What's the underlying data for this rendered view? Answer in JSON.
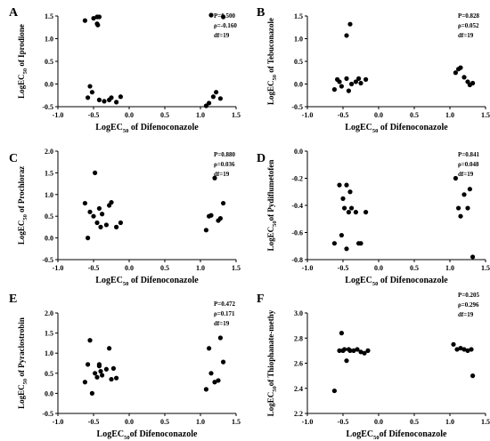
{
  "chart_data": [
    {
      "type": "scatter",
      "panel_label": "A",
      "xlabel_main": "LogEC",
      "xlabel_sub": "50",
      "xlabel_rest": " of Difenoconazole",
      "ylabel_main": "LogEC",
      "ylabel_sub": "50",
      "ylabel_rest": " of Iprodione",
      "xlim": [
        -1.0,
        1.5
      ],
      "ylim": [
        -0.5,
        1.5
      ],
      "xticks": [
        "-1.0",
        "-0.5",
        "0.0",
        "0.5",
        "1.0",
        "1.5"
      ],
      "yticks": [
        "-0.5",
        "0.0",
        "0.5",
        "1.0",
        "1.5"
      ],
      "yticks_values": [
        -0.5,
        0.0,
        0.5,
        1.0,
        1.5
      ],
      "stats": [
        "P=0.500",
        "ρ=-0.160",
        "df=19"
      ],
      "points": [
        [
          -0.62,
          1.4
        ],
        [
          -0.5,
          1.45
        ],
        [
          -0.45,
          1.48
        ],
        [
          -0.42,
          1.48
        ],
        [
          -0.45,
          1.33
        ],
        [
          -0.44,
          1.3
        ],
        [
          -0.58,
          -0.3
        ],
        [
          -0.55,
          -0.05
        ],
        [
          -0.52,
          -0.18
        ],
        [
          -0.42,
          -0.35
        ],
        [
          -0.35,
          -0.38
        ],
        [
          -0.28,
          -0.35
        ],
        [
          -0.25,
          -0.3
        ],
        [
          -0.18,
          -0.4
        ],
        [
          -0.12,
          -0.28
        ],
        [
          1.08,
          -0.48
        ],
        [
          1.12,
          -0.42
        ],
        [
          1.18,
          -0.28
        ],
        [
          1.22,
          -0.18
        ],
        [
          1.28,
          -0.32
        ],
        [
          1.15,
          1.52
        ],
        [
          1.32,
          1.48
        ]
      ]
    },
    {
      "type": "scatter",
      "panel_label": "B",
      "xlabel_main": "LogEC",
      "xlabel_sub": "50",
      "xlabel_rest": " of Difenoconazole",
      "ylabel_main": "LogEC",
      "ylabel_sub": "50",
      "ylabel_rest": " of Tebuconazole",
      "xlim": [
        -1.0,
        1.5
      ],
      "ylim": [
        -0.5,
        1.5
      ],
      "xticks": [
        "-1.0",
        "-0.5",
        "0.0",
        "0.5",
        "1.0",
        "1.5"
      ],
      "yticks": [
        "-0.5",
        "0.0",
        "0.5",
        "1.0",
        "1.5"
      ],
      "yticks_values": [
        -0.5,
        0.0,
        0.5,
        1.0,
        1.5
      ],
      "stats": [
        "P=0.828",
        "ρ=0.052",
        "df=19"
      ],
      "points": [
        [
          -0.45,
          1.07
        ],
        [
          -0.4,
          1.32
        ],
        [
          -0.62,
          -0.12
        ],
        [
          -0.58,
          0.1
        ],
        [
          -0.55,
          0.05
        ],
        [
          -0.52,
          -0.05
        ],
        [
          -0.45,
          0.12
        ],
        [
          -0.42,
          -0.15
        ],
        [
          -0.38,
          0.0
        ],
        [
          -0.32,
          0.05
        ],
        [
          -0.28,
          0.12
        ],
        [
          -0.25,
          0.02
        ],
        [
          -0.18,
          0.1
        ],
        [
          1.08,
          0.25
        ],
        [
          1.12,
          0.33
        ],
        [
          1.15,
          0.36
        ],
        [
          1.2,
          0.15
        ],
        [
          1.25,
          0.05
        ],
        [
          1.28,
          -0.02
        ],
        [
          1.32,
          0.02
        ]
      ]
    },
    {
      "type": "scatter",
      "panel_label": "C",
      "xlabel_main": "LogEC",
      "xlabel_sub": "50",
      "xlabel_rest": " of Difenoconazole",
      "ylabel_main": "LogEC",
      "ylabel_sub": "50",
      "ylabel_rest": " of Prochloraz",
      "xlim": [
        -1.0,
        1.5
      ],
      "ylim": [
        -0.5,
        2.0
      ],
      "xticks": [
        "-1.0",
        "-0.5",
        "0.0",
        "0.5",
        "1.0",
        "1.5"
      ],
      "yticks": [
        "-0.5",
        "0.0",
        "0.5",
        "1.0",
        "1.5",
        "2.0"
      ],
      "yticks_values": [
        -0.5,
        0.0,
        0.5,
        1.0,
        1.5,
        2.0
      ],
      "stats": [
        "P=0.880",
        "ρ=0.036",
        "df=19"
      ],
      "points": [
        [
          -0.48,
          1.5
        ],
        [
          -0.62,
          0.8
        ],
        [
          -0.58,
          0.0
        ],
        [
          -0.55,
          0.6
        ],
        [
          -0.5,
          0.5
        ],
        [
          -0.45,
          0.35
        ],
        [
          -0.42,
          0.68
        ],
        [
          -0.4,
          0.25
        ],
        [
          -0.38,
          0.55
        ],
        [
          -0.32,
          0.3
        ],
        [
          -0.28,
          0.75
        ],
        [
          -0.25,
          0.82
        ],
        [
          -0.18,
          0.25
        ],
        [
          -0.12,
          0.35
        ],
        [
          1.08,
          0.18
        ],
        [
          1.12,
          0.5
        ],
        [
          1.15,
          0.52
        ],
        [
          1.2,
          1.38
        ],
        [
          1.25,
          0.4
        ],
        [
          1.28,
          0.45
        ],
        [
          1.32,
          0.8
        ]
      ]
    },
    {
      "type": "scatter",
      "panel_label": "D",
      "xlabel_main": "LogEC",
      "xlabel_sub": "50",
      "xlabel_rest": " of Difenoconazole",
      "ylabel_main": "LogEC",
      "ylabel_sub": "50",
      "ylabel_rest": "of Pydiflumetofen",
      "xlim": [
        -1.0,
        1.5
      ],
      "ylim": [
        -0.8,
        0.0
      ],
      "xticks": [
        "-1.0",
        "-0.5",
        "0.0",
        "0.5",
        "1.0",
        "1.5"
      ],
      "yticks": [
        "-0.8",
        "-0.6",
        "-0.4",
        "-0.2",
        "0.0"
      ],
      "yticks_values": [
        -0.8,
        -0.6,
        -0.4,
        -0.2,
        0.0
      ],
      "stats": [
        "P=0.841",
        "ρ=0.048",
        "df=19"
      ],
      "points": [
        [
          -0.62,
          -0.68
        ],
        [
          -0.55,
          -0.25
        ],
        [
          -0.52,
          -0.62
        ],
        [
          -0.5,
          -0.35
        ],
        [
          -0.48,
          -0.42
        ],
        [
          -0.45,
          -0.25
        ],
        [
          -0.42,
          -0.45
        ],
        [
          -0.4,
          -0.3
        ],
        [
          -0.38,
          -0.42
        ],
        [
          -0.32,
          -0.45
        ],
        [
          -0.28,
          -0.68
        ],
        [
          -0.25,
          -0.68
        ],
        [
          -0.18,
          -0.45
        ],
        [
          -0.45,
          -0.72
        ],
        [
          1.08,
          -0.2
        ],
        [
          1.12,
          -0.42
        ],
        [
          1.15,
          -0.48
        ],
        [
          1.2,
          -0.32
        ],
        [
          1.25,
          -0.42
        ],
        [
          1.28,
          -0.28
        ],
        [
          1.32,
          -0.78
        ]
      ]
    },
    {
      "type": "scatter",
      "panel_label": "E",
      "xlabel_main": "LogEC",
      "xlabel_sub": "50",
      "xlabel_rest": "of Difenoconazole",
      "ylabel_main": "LogEC",
      "ylabel_sub": "50",
      "ylabel_rest": " of Pyraclostrobin",
      "xlim": [
        -1.0,
        1.5
      ],
      "ylim": [
        -0.5,
        2.0
      ],
      "xticks": [
        "-1.0",
        "-0.5",
        "0.0",
        "0.5",
        "1.0",
        "1.5"
      ],
      "yticks": [
        "-0.5",
        "0.0",
        "0.5",
        "1.0",
        "1.5",
        "2.0"
      ],
      "yticks_values": [
        -0.5,
        0.0,
        0.5,
        1.0,
        1.5,
        2.0
      ],
      "stats": [
        "P=0.472",
        "ρ=0.171",
        "df=19"
      ],
      "points": [
        [
          -0.55,
          1.32
        ],
        [
          -0.62,
          0.28
        ],
        [
          -0.58,
          0.72
        ],
        [
          -0.52,
          0.0
        ],
        [
          -0.48,
          0.5
        ],
        [
          -0.45,
          0.4
        ],
        [
          -0.42,
          0.68
        ],
        [
          -0.4,
          0.55
        ],
        [
          -0.38,
          0.45
        ],
        [
          -0.32,
          0.6
        ],
        [
          -0.28,
          1.12
        ],
        [
          -0.25,
          0.35
        ],
        [
          -0.22,
          0.62
        ],
        [
          -0.18,
          0.38
        ],
        [
          -0.42,
          0.72
        ],
        [
          1.08,
          0.1
        ],
        [
          1.12,
          1.12
        ],
        [
          1.15,
          0.5
        ],
        [
          1.2,
          0.28
        ],
        [
          1.25,
          0.32
        ],
        [
          1.28,
          1.38
        ],
        [
          1.32,
          0.78
        ]
      ]
    },
    {
      "type": "scatter",
      "panel_label": "F",
      "xlabel_main": "LogEC",
      "xlabel_sub": "50",
      "xlabel_rest": "of Difenoconazole",
      "ylabel_main": "LogEC",
      "ylabel_sub": "50",
      "ylabel_rest": "of Thiophanate-methy",
      "xlim": [
        -1.0,
        1.5
      ],
      "ylim": [
        2.2,
        3.0
      ],
      "xticks": [
        "-1.0",
        "-0.5",
        "0.0",
        "0.5",
        "1.0",
        "1.5"
      ],
      "yticks": [
        "2.2",
        "2.4",
        "2.6",
        "2.8",
        "3.0"
      ],
      "yticks_values": [
        2.2,
        2.4,
        2.6,
        2.8,
        3.0
      ],
      "stats": [
        "P=0.205",
        "ρ=0.296",
        "df=19"
      ],
      "points": [
        [
          -0.62,
          2.38
        ],
        [
          -0.55,
          2.7
        ],
        [
          -0.52,
          2.84
        ],
        [
          -0.5,
          2.7
        ],
        [
          -0.48,
          2.71
        ],
        [
          -0.45,
          2.62
        ],
        [
          -0.42,
          2.71
        ],
        [
          -0.4,
          2.7
        ],
        [
          -0.35,
          2.7
        ],
        [
          -0.3,
          2.71
        ],
        [
          -0.25,
          2.69
        ],
        [
          -0.2,
          2.68
        ],
        [
          -0.15,
          2.7
        ],
        [
          1.05,
          2.75
        ],
        [
          1.1,
          2.71
        ],
        [
          1.15,
          2.72
        ],
        [
          1.2,
          2.71
        ],
        [
          1.25,
          2.7
        ],
        [
          1.3,
          2.71
        ],
        [
          1.32,
          2.5
        ]
      ]
    }
  ]
}
